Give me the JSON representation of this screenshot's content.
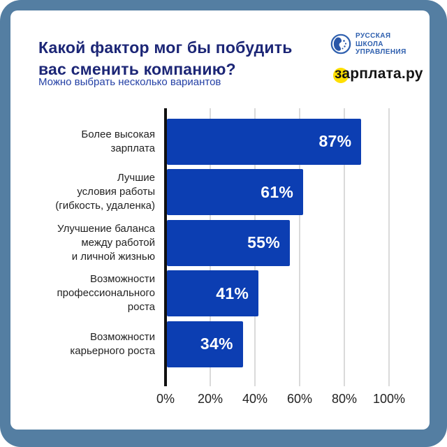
{
  "header": {
    "title_display": "Какой фактор мог бы побудить\nвас сменить компанию?",
    "subtitle": "Можно выбрать несколько вариантов"
  },
  "logos": {
    "rsu": {
      "lines": [
        "РУССКАЯ",
        "ШКОЛА",
        "УПРАВЛЕНИЯ"
      ]
    },
    "zarplata": {
      "text": "зарплата.ру"
    }
  },
  "chart_data": {
    "type": "bar",
    "orientation": "horizontal",
    "title": "Какой фактор мог бы побудить вас сменить компанию?",
    "subtitle": "Можно выбрать несколько вариантов",
    "categories": [
      "Более высокая зарплата",
      "Лучшие условия работы (гибкость, удаленка)",
      "Улучшение баланса между работой и личной жизнью",
      "Возможности профессионального роста",
      "Возможности карьерного роста"
    ],
    "category_display": [
      "Более высокая\nзарплата",
      "Лучшие\nусловия работы\n(гибкость, удаленка)",
      "Улучшение баланса\nмежду работой\nи личной жизнью",
      "Возможности\nпрофессионального\nроста",
      "Возможности\nкарьерного роста"
    ],
    "values": [
      87,
      61,
      55,
      41,
      34
    ],
    "value_labels": [
      "87%",
      "61%",
      "55%",
      "41%",
      "34%"
    ],
    "x_ticks": [
      "0%",
      "20%",
      "40%",
      "60%",
      "80%",
      "100%"
    ],
    "xlim": [
      0,
      100
    ],
    "grid": "vertical",
    "legend": "none"
  },
  "colors": {
    "frame": "#547ea2",
    "card": "#ffffff",
    "bar": "#0c3eb2",
    "title": "#1c2676",
    "subtitle": "#2440a5",
    "logo_blue": "#2e5fae",
    "logo_yellow": "#ffdf00",
    "gridline": "#dadada",
    "axis": "#101010",
    "label_text": "#222222",
    "value_text": "#ffffff"
  }
}
